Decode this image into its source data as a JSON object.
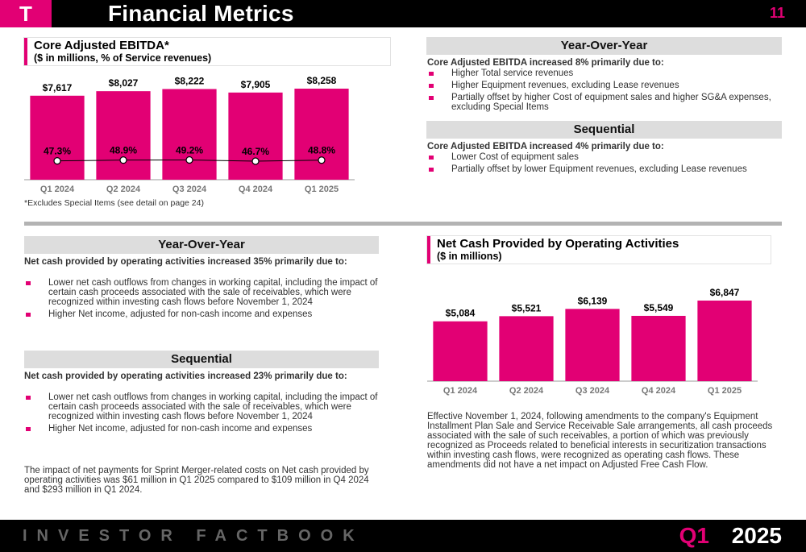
{
  "header": {
    "logo": "T",
    "title": "Financial Metrics",
    "page_number": "11"
  },
  "ebitda_box": {
    "title": "Core Adjusted EBITDA*",
    "subtitle": "($ in millions, % of Service revenues)"
  },
  "ebitda_footnote": "*Excludes Special Items (see detail on page 24)",
  "ocf_box": {
    "title": "Net Cash Provided by Operating Activities",
    "subtitle": "($ in millions)"
  },
  "chart_data": [
    {
      "type": "bar",
      "categories": [
        "Q1 2024",
        "Q2 2024",
        "Q3 2024",
        "Q4 2024",
        "Q1 2025"
      ],
      "values": [
        7617,
        8027,
        8222,
        7905,
        8258
      ],
      "value_labels": [
        "$7,617",
        "$8,027",
        "$8,222",
        "$7,905",
        "$8,258"
      ],
      "series": [
        {
          "values": [
            7617,
            8027,
            8222,
            7905,
            8258
          ]
        },
        {
          "values": [
            47.3,
            48.9,
            49.2,
            46.7,
            48.8
          ],
          "labels": [
            "47.3%",
            "48.9%",
            "49.2%",
            "46.7%",
            "48.8%"
          ]
        }
      ],
      "title": "Core Adjusted EBITDA*",
      "subtitle": "($ in millions, % of Service revenues)",
      "color": "#e20074",
      "ylim": [
        0,
        8258
      ]
    },
    {
      "type": "bar",
      "categories": [
        "Q1 2024",
        "Q2 2024",
        "Q3 2024",
        "Q4 2024",
        "Q1 2025"
      ],
      "values": [
        5084,
        5521,
        6139,
        5549,
        6847
      ],
      "value_labels": [
        "$5,084",
        "$5,521",
        "$6,139",
        "$5,549",
        "$6,847"
      ],
      "title": "Net Cash Provided by Operating Activities",
      "subtitle": "($ in millions)",
      "color": "#e20074",
      "ylim": [
        0,
        6847
      ]
    }
  ],
  "ebitda_yoy": {
    "heading": "Year-Over-Year",
    "intro": "Core Adjusted EBITDA increased 8% primarily due to:",
    "bullets": [
      "Higher Total service revenues",
      "Higher Equipment revenues, excluding Lease revenues",
      "Partially offset by higher Cost of equipment sales and higher SG&A expenses, excluding Special Items"
    ]
  },
  "ebitda_seq": {
    "heading": "Sequential",
    "intro": "Core Adjusted EBITDA increased 4% primarily due to:",
    "bullets": [
      "Lower Cost of equipment sales",
      "Partially offset by lower Equipment revenues, excluding Lease revenues"
    ]
  },
  "ocf_yoy": {
    "heading": "Year-Over-Year",
    "intro": "Net cash provided by operating activities increased 35% primarily due to:",
    "bullets": [
      "Lower net cash outflows from changes in working capital, including the impact of certain cash proceeds associated with the sale of receivables, which were recognized within investing cash flows before November 1, 2024",
      "Higher Net income, adjusted for non-cash income and expenses"
    ]
  },
  "ocf_seq": {
    "heading": "Sequential",
    "intro": "Net cash provided by operating activities increased 23% primarily due to:",
    "bullets": [
      "Lower net cash outflows from changes in working capital, including the impact of certain cash proceeds associated with the sale of receivables, which were recognized within investing cash flows before November 1, 2024",
      "Higher Net income, adjusted for non-cash income and expenses"
    ]
  },
  "sprint_note": "The impact of net payments for Sprint Merger-related costs on Net cash provided by operating activities was $61 million in Q1 2025 compared to $109 million in Q4 2024 and $293 million in Q1 2024.",
  "amendment_note": "Effective November 1, 2024, following amendments to the company's Equipment Installment Plan Sale and Service Receivable Sale arrangements, all cash proceeds associated with the sale of such receivables, a portion of which was previously recognized as Proceeds related to beneficial interests in securitization transactions within investing cash flows, were recognized as operating cash flows. These amendments did not have a net impact on Adjusted Free Cash Flow.",
  "footer": {
    "left": "INVESTOR FACTBOOK",
    "quarter": "Q1",
    "year": "2025"
  },
  "colors": {
    "brand": "#e20074",
    "band": "#dddddd",
    "black": "#000000"
  }
}
